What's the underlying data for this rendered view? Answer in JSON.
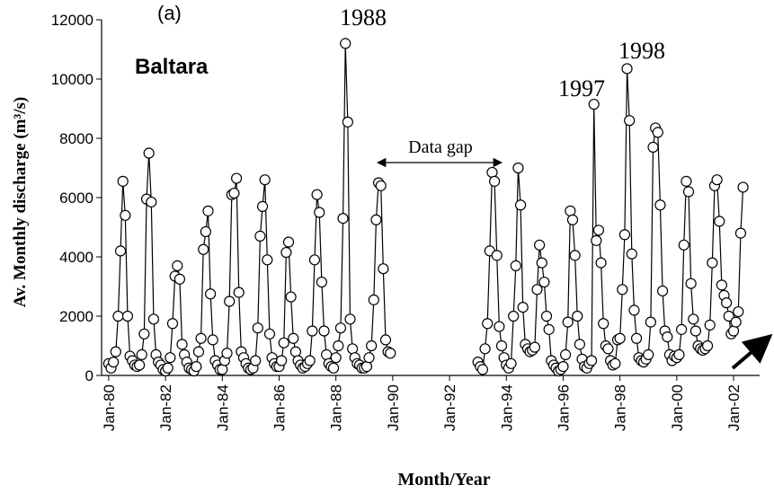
{
  "chart_data": {
    "type": "line",
    "annotations": {
      "panel": "(a)",
      "station": "Baltara",
      "peak1988": "1988",
      "peak1997": "1997",
      "peak1998": "1998",
      "gap": "Data gap"
    },
    "xlabel": "Month/Year",
    "ylabel": "Av. Monthly discharge (m³/s)",
    "xlim": [
      "1979-10",
      "2002-12"
    ],
    "xticks": [
      {
        "value": "1980-01",
        "label": "Jan-80"
      },
      {
        "value": "1982-01",
        "label": "Jan-82"
      },
      {
        "value": "1984-01",
        "label": "Jan-84"
      },
      {
        "value": "1986-01",
        "label": "Jan-86"
      },
      {
        "value": "1988-01",
        "label": "Jan-88"
      },
      {
        "value": "1990-01",
        "label": "Jan-90"
      },
      {
        "value": "1992-01",
        "label": "Jan-92"
      },
      {
        "value": "1994-01",
        "label": "Jan-94"
      },
      {
        "value": "1996-01",
        "label": "Jan-96"
      },
      {
        "value": "1998-01",
        "label": "Jan-98"
      },
      {
        "value": "2000-01",
        "label": "Jan-00"
      },
      {
        "value": "2002-01",
        "label": "Jan-02"
      }
    ],
    "ylim": [
      0,
      12000
    ],
    "yticks": [
      0,
      2000,
      4000,
      6000,
      8000,
      10000,
      12000
    ],
    "color": "#000000",
    "x": [
      "1980-01",
      "1980-02",
      "1980-03",
      "1980-04",
      "1980-05",
      "1980-06",
      "1980-07",
      "1980-08",
      "1980-09",
      "1980-10",
      "1980-11",
      "1980-12",
      "1981-01",
      "1981-02",
      "1981-03",
      "1981-04",
      "1981-05",
      "1981-06",
      "1981-07",
      "1981-08",
      "1981-09",
      "1981-10",
      "1981-11",
      "1981-12",
      "1982-01",
      "1982-02",
      "1982-03",
      "1982-04",
      "1982-05",
      "1982-06",
      "1982-07",
      "1982-08",
      "1982-09",
      "1982-10",
      "1982-11",
      "1982-12",
      "1983-01",
      "1983-02",
      "1983-03",
      "1983-04",
      "1983-05",
      "1983-06",
      "1983-07",
      "1983-08",
      "1983-09",
      "1983-10",
      "1983-11",
      "1983-12",
      "1984-01",
      "1984-02",
      "1984-03",
      "1984-04",
      "1984-05",
      "1984-06",
      "1984-07",
      "1984-08",
      "1984-09",
      "1984-10",
      "1984-11",
      "1984-12",
      "1985-01",
      "1985-02",
      "1985-03",
      "1985-04",
      "1985-05",
      "1985-06",
      "1985-07",
      "1985-08",
      "1985-09",
      "1985-10",
      "1985-11",
      "1985-12",
      "1986-01",
      "1986-02",
      "1986-03",
      "1986-04",
      "1986-05",
      "1986-06",
      "1986-07",
      "1986-08",
      "1986-09",
      "1986-10",
      "1986-11",
      "1986-12",
      "1987-01",
      "1987-02",
      "1987-03",
      "1987-04",
      "1987-05",
      "1987-06",
      "1987-07",
      "1987-08",
      "1987-09",
      "1987-10",
      "1987-11",
      "1987-12",
      "1988-01",
      "1988-02",
      "1988-03",
      "1988-04",
      "1988-05",
      "1988-06",
      "1988-07",
      "1988-08",
      "1988-09",
      "1988-10",
      "1988-11",
      "1988-12",
      "1989-01",
      "1989-02",
      "1989-03",
      "1989-04",
      "1989-05",
      "1989-06",
      "1989-07",
      "1989-08",
      "1989-09",
      "1989-10",
      "1989-11",
      "1989-12",
      "1991-06",
      "1993-01",
      "1993-02",
      "1993-03",
      "1993-04",
      "1993-05",
      "1993-06",
      "1993-07",
      "1993-08",
      "1993-09",
      "1993-10",
      "1993-11",
      "1993-12",
      "1994-01",
      "1994-02",
      "1994-03",
      "1994-04",
      "1994-05",
      "1994-06",
      "1994-07",
      "1994-08",
      "1994-09",
      "1994-10",
      "1994-11",
      "1994-12",
      "1995-01",
      "1995-02",
      "1995-03",
      "1995-04",
      "1995-05",
      "1995-06",
      "1995-07",
      "1995-08",
      "1995-09",
      "1995-10",
      "1995-11",
      "1995-12",
      "1996-01",
      "1996-02",
      "1996-03",
      "1996-04",
      "1996-05",
      "1996-06",
      "1996-07",
      "1996-08",
      "1996-09",
      "1996-10",
      "1996-11",
      "1996-12",
      "1997-01",
      "1997-02",
      "1997-03",
      "1997-04",
      "1997-05",
      "1997-06",
      "1997-07",
      "1997-08",
      "1997-09",
      "1997-10",
      "1997-11",
      "1997-12",
      "1998-01",
      "1998-02",
      "1998-03",
      "1998-04",
      "1998-05",
      "1998-06",
      "1998-07",
      "1998-08",
      "1998-09",
      "1998-10",
      "1998-11",
      "1998-12",
      "1999-01",
      "1999-02",
      "1999-03",
      "1999-04",
      "1999-05",
      "1999-06",
      "1999-07",
      "1999-08",
      "1999-09",
      "1999-10",
      "1999-11",
      "1999-12",
      "2000-01",
      "2000-02",
      "2000-03",
      "2000-04",
      "2000-05",
      "2000-06",
      "2000-07",
      "2000-08",
      "2000-09",
      "2000-10",
      "2000-11",
      "2000-12",
      "2001-01",
      "2001-02",
      "2001-03",
      "2001-04",
      "2001-05",
      "2001-06",
      "2001-07",
      "2001-08",
      "2001-09",
      "2001-10",
      "2001-11",
      "2001-12",
      "2002-01",
      "2002-02",
      "2002-03",
      "2002-04",
      "2002-05"
    ],
    "values": [
      400,
      250,
      450,
      800,
      2000,
      4200,
      6550,
      5400,
      2000,
      650,
      500,
      350,
      300,
      350,
      700,
      1400,
      5950,
      7500,
      5850,
      1900,
      700,
      450,
      350,
      200,
      150,
      250,
      600,
      1750,
      3350,
      3700,
      3250,
      1050,
      700,
      450,
      250,
      200,
      150,
      300,
      800,
      1250,
      4250,
      4850,
      5550,
      2750,
      1200,
      500,
      350,
      200,
      200,
      500,
      750,
      2500,
      6100,
      6150,
      6650,
      2800,
      800,
      600,
      400,
      250,
      200,
      250,
      500,
      1600,
      4700,
      5700,
      6600,
      3900,
      1400,
      600,
      400,
      300,
      300,
      500,
      1100,
      4150,
      4500,
      2650,
      1250,
      800,
      500,
      350,
      250,
      300,
      400,
      500,
      1500,
      3900,
      6100,
      5500,
      3150,
      1500,
      700,
      400,
      300,
      250,
      600,
      1000,
      1600,
      5300,
      11200,
      8550,
      1900,
      900,
      600,
      400,
      350,
      250,
      250,
      300,
      600,
      1000,
      2550,
      5250,
      6500,
      6400,
      3600,
      1200,
      800,
      750,
      null,
      450,
      300,
      200,
      900,
      1750,
      4200,
      6850,
      6550,
      4050,
      1650,
      1000,
      600,
      350,
      250,
      400,
      2000,
      3700,
      7000,
      5750,
      2300,
      1050,
      900,
      800,
      850,
      950,
      2900,
      4400,
      3800,
      3150,
      2000,
      1550,
      500,
      350,
      250,
      150,
      200,
      300,
      700,
      1800,
      5550,
      5250,
      4050,
      2000,
      1050,
      550,
      300,
      250,
      400,
      500,
      9150,
      4550,
      4900,
      3800,
      1750,
      1000,
      900,
      500,
      350,
      400,
      1200,
      1250,
      2900,
      4750,
      10350,
      8600,
      4100,
      2200,
      1250,
      600,
      500,
      450,
      550,
      700,
      1800,
      7700,
      8350,
      8200,
      5750,
      2850,
      1500,
      1300,
      700,
      500,
      650,
      600,
      700,
      1550,
      4400,
      6550,
      6200,
      3100,
      1900,
      1500,
      1000,
      900,
      850,
      900,
      1000,
      1700,
      3800,
      6400,
      6600,
      5200,
      3050,
      2700,
      2450,
      2000,
      1400,
      1500,
      1800,
      2150,
      4800,
      6350
    ]
  }
}
